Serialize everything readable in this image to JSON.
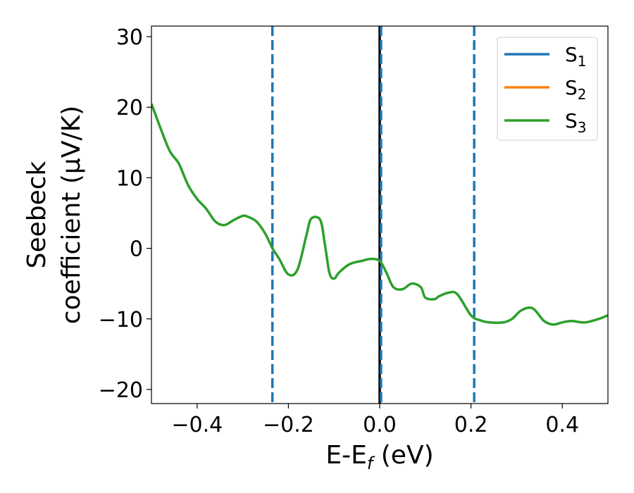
{
  "chart_data": {
    "type": "line",
    "xlabel": "E-E",
    "xlabel_sub": "f",
    "xlabel_unit": " (eV)",
    "ylabel_line1": "Seebeck",
    "ylabel_line2": "coefficient  (μV/K)",
    "xlim": [
      -0.5,
      0.5
    ],
    "ylim": [
      -22,
      31.5
    ],
    "xticks": [
      -0.4,
      -0.2,
      0.0,
      0.2,
      0.4
    ],
    "xtick_labels": [
      "−0.4",
      "−0.2",
      "0.0",
      "0.2",
      "0.4"
    ],
    "yticks": [
      -20,
      -10,
      0,
      10,
      20,
      30
    ],
    "ytick_labels": [
      "−20",
      "−10",
      "0",
      "10",
      "20",
      "30"
    ],
    "legend_position": "top-right",
    "grid": false,
    "series": [
      {
        "name": "S",
        "sub": "1",
        "color": "#1f77b4",
        "x": [],
        "y": []
      },
      {
        "name": "S",
        "sub": "2",
        "color": "#ff7f0e",
        "x": [],
        "y": []
      },
      {
        "name": "S",
        "sub": "3",
        "color": "#2ca02c",
        "x": [
          -0.5,
          -0.48,
          -0.46,
          -0.44,
          -0.42,
          -0.4,
          -0.38,
          -0.36,
          -0.34,
          -0.32,
          -0.3,
          -0.29,
          -0.27,
          -0.25,
          -0.235,
          -0.22,
          -0.2,
          -0.18,
          -0.16,
          -0.15,
          -0.13,
          -0.12,
          -0.11,
          -0.1,
          -0.09,
          -0.07,
          -0.055,
          -0.04,
          -0.02,
          0.0,
          0.015,
          0.03,
          0.05,
          0.07,
          0.09,
          0.1,
          0.12,
          0.13,
          0.15,
          0.17,
          0.2,
          0.22,
          0.24,
          0.27,
          0.29,
          0.31,
          0.335,
          0.36,
          0.38,
          0.4,
          0.42,
          0.45,
          0.48,
          0.5
        ],
        "y": [
          20.5,
          17.0,
          13.8,
          12.0,
          9.0,
          7.0,
          5.6,
          3.8,
          3.3,
          4.0,
          4.6,
          4.5,
          3.8,
          2.0,
          0.0,
          -1.5,
          -3.7,
          -3.0,
          2.0,
          4.2,
          4.0,
          0.5,
          -3.5,
          -4.3,
          -3.5,
          -2.4,
          -2.0,
          -1.8,
          -1.5,
          -1.8,
          -3.5,
          -5.5,
          -5.8,
          -5.0,
          -5.5,
          -7.0,
          -7.2,
          -6.8,
          -6.3,
          -6.5,
          -9.5,
          -10.2,
          -10.5,
          -10.5,
          -10.0,
          -8.8,
          -8.5,
          -10.3,
          -10.8,
          -10.5,
          -10.3,
          -10.5,
          -10.0,
          -9.5
        ]
      }
    ],
    "vlines": [
      {
        "x": -0.235,
        "color": "#1f77b4",
        "style": "dashed"
      },
      {
        "x": 0.0,
        "color": "#000000",
        "style": "solid"
      },
      {
        "x": 0.003,
        "color": "#1f77b4",
        "style": "dashed"
      },
      {
        "x": 0.207,
        "color": "#1f77b4",
        "style": "dashed"
      }
    ]
  }
}
